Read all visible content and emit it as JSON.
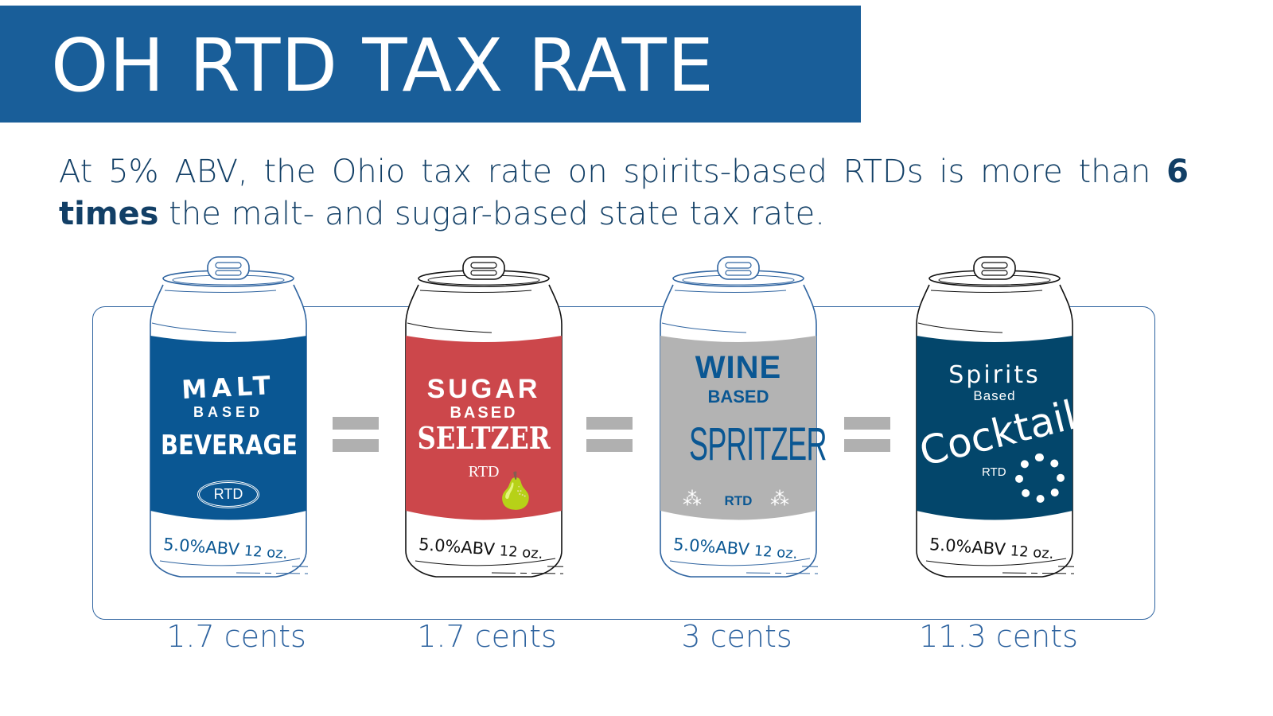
{
  "title": "OH RTD TAX RATE",
  "intro": {
    "part1": "At 5% ABV, the Ohio tax rate on spirits-based RTDs is more than ",
    "bold1": "6 times",
    "part2": " the malt- and sugar-based state tax rate."
  },
  "cans": [
    {
      "line1": "MALT",
      "line2": "BASED",
      "line3": "BEVERAGE",
      "badge": "RTD",
      "abv": "5.0%ABV",
      "size": "12 oz.",
      "tax": "1.7 cents",
      "color": "#0a5793",
      "outline": "#2f64a0"
    },
    {
      "line1": "SUGAR",
      "line2": "BASED",
      "line3": "SELTZER",
      "badge": "RTD",
      "abv": "5.0%ABV",
      "size": "12 oz.",
      "tax": "1.7 cents",
      "color": "#cc474b",
      "outline": "#111111"
    },
    {
      "line1": "WINE",
      "line2": "BASED",
      "line3": "SPRITZER",
      "badge": "RTD",
      "abv": "5.0%ABV",
      "size": "12 oz.",
      "tax": "3 cents",
      "color": "#b3b3b3",
      "outline": "#2f64a0"
    },
    {
      "line1": "Spirits",
      "line2": "Based",
      "line3": "Cocktail",
      "badge": "RTD",
      "abv": "5.0%ABV",
      "size": "12 oz.",
      "tax": "11.3 cents",
      "color": "#03466b",
      "outline": "#111111"
    }
  ]
}
